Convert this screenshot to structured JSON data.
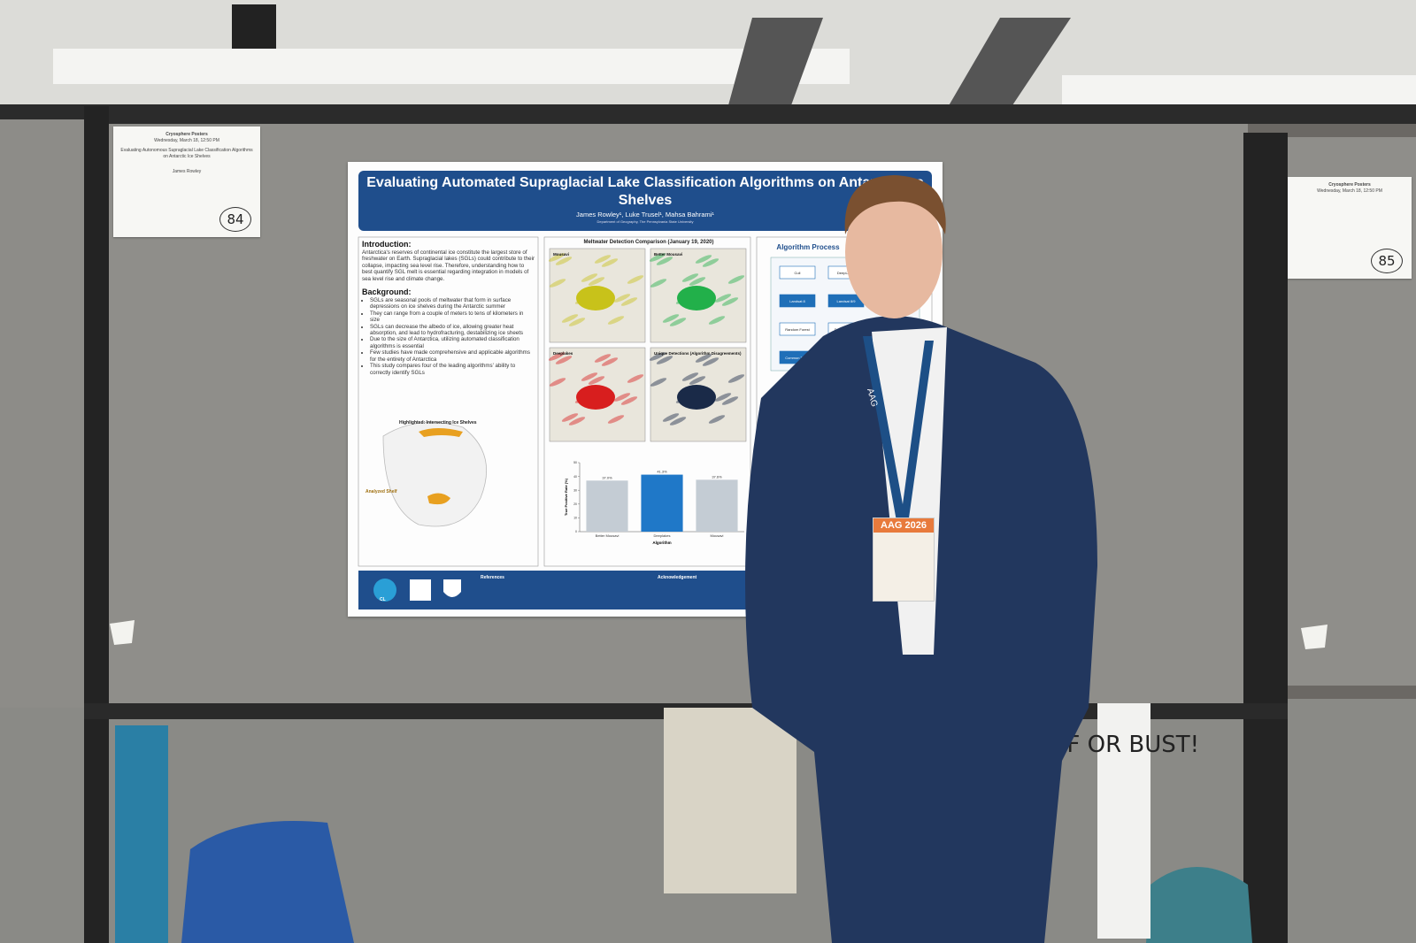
{
  "signs": [
    {
      "heading": "Cryosphere Posters",
      "time": "Wednesday, March 18, 12:50 PM",
      "title": "Evaluating Autonomous Supraglacial Lake Classification Algorithms on Antarctic Ice Shelves",
      "author": "James Rowley",
      "number": "84"
    },
    {
      "heading": "Cryosphere Posters",
      "time": "Wednesday, March 18, 12:50 PM",
      "number": "85"
    }
  ],
  "poster": {
    "title": "Evaluating Automated Supraglacial Lake Classification Algorithms on Antarctic Ice Shelves",
    "authors": "James Rowley¹, Luke Trusel¹, Mahsa Bahrami¹",
    "affiliation": "Department of Geography, The Pennsylvania State University",
    "introduction": {
      "heading": "Introduction:",
      "text": "Antarctica's reserves of continental ice constitute the largest store of freshwater on Earth. Supraglacial lakes (SGLs) could contribute to their collapse, impacting sea level rise. Therefore, understanding how to best quantify SGL melt is essential regarding integration in models of sea level rise and climate change."
    },
    "background": {
      "heading": "Background:",
      "bullets": [
        "SGLs are seasonal pools of meltwater that form in surface depressions on ice shelves during the Antarctic summer",
        "They can range from a couple of meters to tens of kilometers in size",
        "SGLs can decrease the albedo of ice, allowing greater heat absorption, and lead to hydrofracturing, destabilizing ice sheets",
        "Due to the size of Antarctica, utilizing automated classification algorithms is essential",
        "Few studies have made comprehensive and applicable algorithms for the entirety of Antarctica",
        "This study compares four of the leading algorithms' ability to correctly identify SGLs"
      ]
    },
    "figure": {
      "title": "Meltwater Detection Comparison (January 19, 2020)",
      "panels": [
        "Mousavi",
        "Better Mousavi",
        "Deeplakes",
        "Unique Detections (Algorithm Disagreements)"
      ]
    },
    "map": {
      "title": "Highlighted: Intersecting Ice Shelves",
      "legend": "Analyzed Shelf"
    },
    "process": {
      "title": "Algorithm Process",
      "nodes": [
        "Cull",
        "DeepLakes",
        "Landsat 8",
        "Landsat 8/9",
        "Random Forest",
        "Deep Learning",
        "Common Trend"
      ]
    },
    "references": "References",
    "acknowledgement": "Acknowledgement",
    "logo": "CL"
  },
  "chart_data": {
    "type": "bar",
    "categories": [
      "Better Mousavi",
      "Deeplakes",
      "Mousavi"
    ],
    "values": [
      37.0,
      41.3,
      37.6
    ],
    "value_labels": [
      "37.0%",
      "41.3%",
      "37.6%"
    ],
    "colors": [
      "#c4ccd4",
      "#1f78c8",
      "#c4ccd4"
    ],
    "ylim": [
      0,
      50
    ],
    "yticks": [
      0,
      10,
      20,
      30,
      40,
      50
    ],
    "x_label": "Algorithm",
    "y_label": "True Positive Rate (%)"
  },
  "badge": {
    "event": "AAG 2026"
  },
  "lanyard": "AAG",
  "sign": "OF OR BUST!"
}
